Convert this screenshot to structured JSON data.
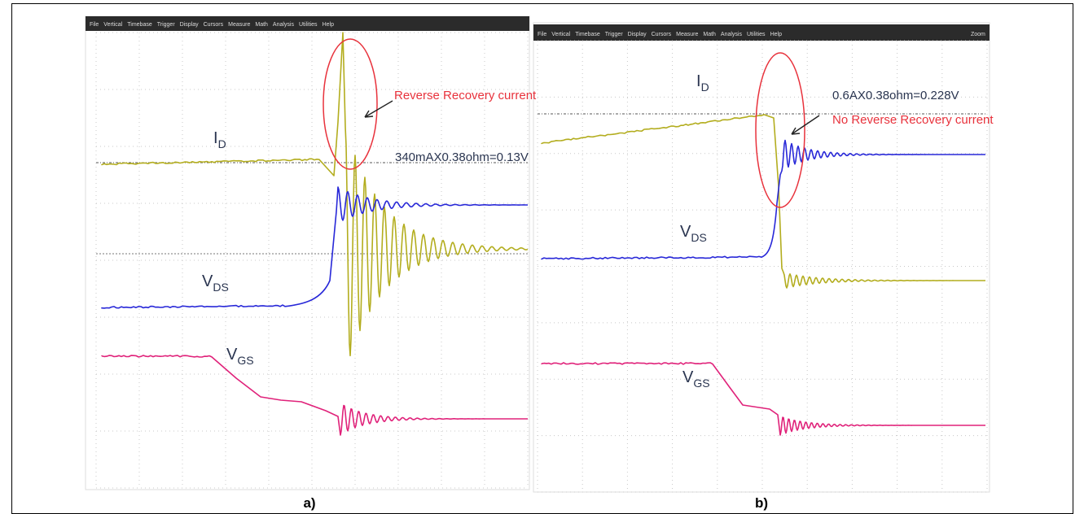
{
  "panels": [
    {
      "menu": [
        "File",
        "Vertical",
        "Timebase",
        "Trigger",
        "Display",
        "Cursors",
        "Measure",
        "Math",
        "Analysis",
        "Utilities",
        "Help"
      ],
      "signals": {
        "id": {
          "main": "I",
          "sub": "D"
        },
        "vds": {
          "main": "V",
          "sub": "DS"
        },
        "vgs": {
          "main": "V",
          "sub": "GS"
        }
      },
      "annotations": [
        "Reverse Recovery current",
        "340mAX0.38ohm=0.13V"
      ],
      "caption": "a)"
    },
    {
      "menu": [
        "File",
        "Vertical",
        "Timebase",
        "Trigger",
        "Display",
        "Cursors",
        "Measure",
        "Math",
        "Analysis",
        "Utilities",
        "Help"
      ],
      "zoom": "Zoom",
      "signals": {
        "id": {
          "main": "I",
          "sub": "D"
        },
        "vds": {
          "main": "V",
          "sub": "DS"
        },
        "vgs": {
          "main": "V",
          "sub": "GS"
        }
      },
      "annotations": [
        "0.6AX0.38ohm=0.228V",
        "No Reverse Recovery current"
      ],
      "caption": "b)"
    }
  ]
}
